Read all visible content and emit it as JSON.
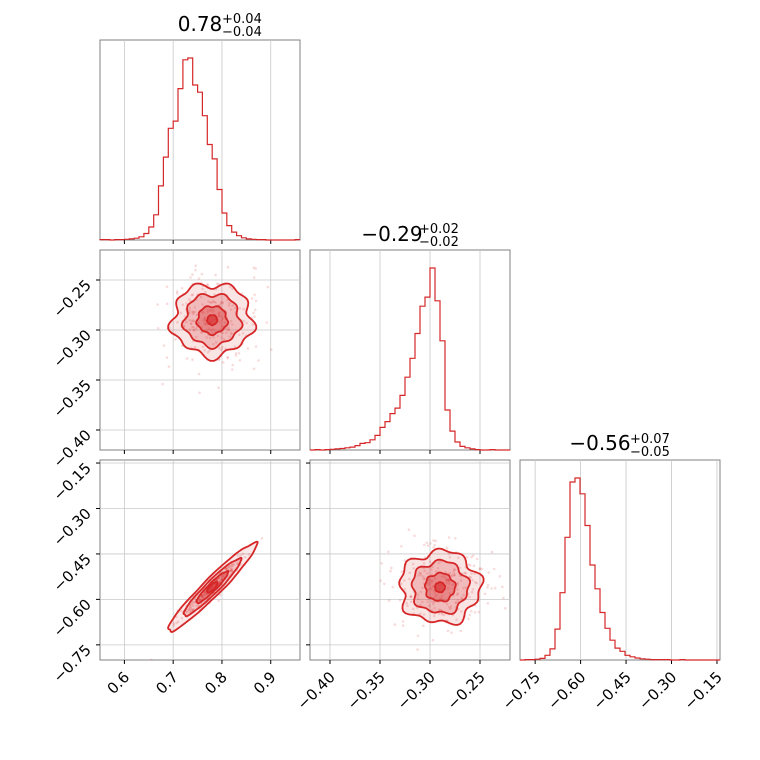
{
  "chart_data": {
    "type": "corner",
    "accent_color": "#d62728",
    "grid": true,
    "parameters": [
      {
        "median": 0.78,
        "err_plus": 0.04,
        "err_minus": 0.04,
        "title_main": "0.78",
        "title_plus": "+0.04",
        "title_minus": "−0.04",
        "range": [
          0.55,
          0.96
        ],
        "ticks": [
          0.6,
          0.7,
          0.8,
          0.9
        ],
        "tick_labels": [
          "0.6",
          "0.7",
          "0.8",
          "0.9"
        ]
      },
      {
        "median": -0.29,
        "err_plus": 0.02,
        "err_minus": 0.02,
        "title_main": "−0.29",
        "title_plus": "+0.02",
        "title_minus": "−0.02",
        "range": [
          -0.42,
          -0.22
        ],
        "ticks": [
          -0.4,
          -0.35,
          -0.3,
          -0.25
        ],
        "tick_labels": [
          "−0.40",
          "−0.35",
          "−0.30",
          "−0.25"
        ]
      },
      {
        "median": -0.56,
        "err_plus": 0.07,
        "err_minus": 0.05,
        "title_main": "−0.56",
        "title_plus": "+0.07",
        "title_minus": "−0.05",
        "range": [
          -0.8,
          -0.14
        ],
        "ticks": [
          -0.75,
          -0.6,
          -0.45,
          -0.3,
          -0.15
        ],
        "tick_labels": [
          "−0.75",
          "−0.60",
          "−0.45",
          "−0.30",
          "−0.15"
        ]
      }
    ],
    "histograms": [
      {
        "param": 0,
        "bin_start": 0.55,
        "bin_width": 0.01,
        "counts": [
          1,
          1,
          0,
          1,
          1,
          2,
          3,
          5,
          9,
          18,
          36,
          70,
          150,
          230,
          310,
          330,
          420,
          500,
          505,
          430,
          410,
          345,
          265,
          225,
          140,
          75,
          40,
          22,
          12,
          6,
          3,
          2,
          1,
          1,
          0,
          0,
          0,
          0,
          0,
          0,
          1
        ]
      },
      {
        "param": 1,
        "bin_start": -0.42,
        "bin_width": 0.005,
        "counts": [
          0,
          1,
          0,
          1,
          2,
          3,
          4,
          6,
          8,
          12,
          18,
          20,
          28,
          40,
          62,
          78,
          100,
          115,
          150,
          200,
          252,
          320,
          395,
          420,
          500,
          410,
          300,
          110,
          52,
          22,
          10,
          6,
          3,
          1,
          0,
          0,
          1,
          0,
          0,
          0
        ]
      },
      {
        "param": 2,
        "bin_start": -0.8,
        "bin_width": 0.0165,
        "counts": [
          0,
          1,
          1,
          2,
          4,
          12,
          28,
          78,
          170,
          310,
          450,
          460,
          420,
          340,
          240,
          180,
          120,
          80,
          50,
          30,
          22,
          12,
          8,
          5,
          3,
          2,
          1,
          1,
          1,
          1,
          0,
          0,
          1,
          0,
          0,
          0,
          0,
          0,
          0,
          0
        ]
      }
    ],
    "pairs": [
      {
        "x_param": 0,
        "y_param": 1,
        "shape": "blob"
      },
      {
        "x_param": 0,
        "y_param": 2,
        "shape": "correlated"
      },
      {
        "x_param": 1,
        "y_param": 2,
        "shape": "blob"
      }
    ]
  }
}
